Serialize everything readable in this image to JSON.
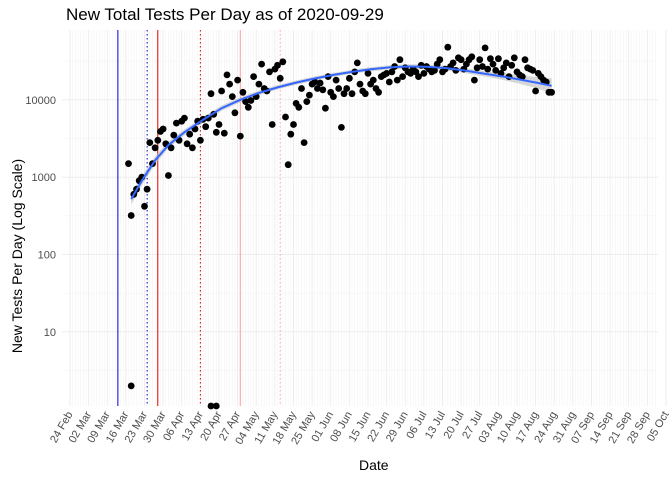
{
  "chart_data": {
    "type": "scatter",
    "title": "New Total Tests Per Day as of 2020-09-29",
    "xlabel": "Date",
    "ylabel": "New Tests Per Day (Log Scale)",
    "y_scale": "log10",
    "ylim": [
      1.1,
      80000
    ],
    "y_ticks": [
      10,
      100,
      1000,
      10000
    ],
    "y_tick_labels": [
      "10",
      "100",
      "1000",
      "10000"
    ],
    "x_start": "2020-02-24",
    "x_ticks": [
      "2020-02-24",
      "2020-03-02",
      "2020-03-09",
      "2020-03-16",
      "2020-03-23",
      "2020-03-30",
      "2020-04-06",
      "2020-04-13",
      "2020-04-20",
      "2020-04-27",
      "2020-05-04",
      "2020-05-11",
      "2020-05-18",
      "2020-05-25",
      "2020-06-01",
      "2020-06-08",
      "2020-06-15",
      "2020-06-22",
      "2020-06-29",
      "2020-07-06",
      "2020-07-13",
      "2020-07-20",
      "2020-07-27",
      "2020-08-03",
      "2020-08-10",
      "2020-08-17",
      "2020-08-24",
      "2020-08-31",
      "2020-09-07",
      "2020-09-14",
      "2020-09-21",
      "2020-09-28",
      "2020-10-05"
    ],
    "x_tick_labels": [
      "24 Feb",
      "02 Mar",
      "09 Mar",
      "16 Mar",
      "23 Mar",
      "30 Mar",
      "06 Apr",
      "13 Apr",
      "20 Apr",
      "27 Apr",
      "04 May",
      "11 May",
      "18 May",
      "25 May",
      "01 Jun",
      "08 Jun",
      "15 Jun",
      "22 Jun",
      "29 Jun",
      "06 Jul",
      "13 Jul",
      "20 Jul",
      "27 Jul",
      "03 Aug",
      "10 Aug",
      "17 Aug",
      "24 Aug",
      "31 Aug",
      "07 Sep",
      "14 Sep",
      "21 Sep",
      "28 Sep",
      "05 Oct"
    ],
    "grid": true,
    "vlines": [
      {
        "date": "2020-03-13",
        "color": "#0000cc",
        "style": "solid"
      },
      {
        "date": "2020-03-24",
        "color": "#0000cc",
        "style": "dotted"
      },
      {
        "date": "2020-03-28",
        "color": "#dd0000",
        "style": "solid"
      },
      {
        "date": "2020-04-13",
        "color": "#dd0000",
        "style": "dotted"
      },
      {
        "date": "2020-04-28",
        "color": "#ff9999",
        "style": "solid"
      },
      {
        "date": "2020-05-13",
        "color": "#ff9999",
        "style": "dotted"
      }
    ],
    "smooth": {
      "color": "#3366ff",
      "band_color": "#bdbdbd",
      "points": [
        {
          "day": 23,
          "y": 520,
          "lo": 440,
          "hi": 620
        },
        {
          "day": 27,
          "y": 900,
          "lo": 780,
          "hi": 1030
        },
        {
          "day": 32,
          "y": 1650,
          "lo": 1460,
          "hi": 1860
        },
        {
          "day": 37,
          "y": 2600,
          "lo": 2360,
          "hi": 2870
        },
        {
          "day": 43,
          "y": 3800,
          "lo": 3480,
          "hi": 4150
        },
        {
          "day": 50,
          "y": 5500,
          "lo": 5050,
          "hi": 6000
        },
        {
          "day": 57,
          "y": 7800,
          "lo": 7200,
          "hi": 8450
        },
        {
          "day": 64,
          "y": 10000,
          "lo": 9300,
          "hi": 10800
        },
        {
          "day": 71,
          "y": 12300,
          "lo": 11500,
          "hi": 13200
        },
        {
          "day": 78,
          "y": 14500,
          "lo": 13600,
          "hi": 15500
        },
        {
          "day": 85,
          "y": 16700,
          "lo": 15700,
          "hi": 17800
        },
        {
          "day": 92,
          "y": 18900,
          "lo": 17800,
          "hi": 20100
        },
        {
          "day": 99,
          "y": 21000,
          "lo": 19800,
          "hi": 22300
        },
        {
          "day": 106,
          "y": 23000,
          "lo": 21700,
          "hi": 24400
        },
        {
          "day": 113,
          "y": 24900,
          "lo": 23400,
          "hi": 26500
        },
        {
          "day": 120,
          "y": 26300,
          "lo": 24700,
          "hi": 28000
        },
        {
          "day": 127,
          "y": 27000,
          "lo": 25300,
          "hi": 28800
        },
        {
          "day": 134,
          "y": 26800,
          "lo": 25100,
          "hi": 28600
        },
        {
          "day": 141,
          "y": 25800,
          "lo": 24100,
          "hi": 27600
        },
        {
          "day": 148,
          "y": 24000,
          "lo": 22300,
          "hi": 25800
        },
        {
          "day": 155,
          "y": 22000,
          "lo": 20300,
          "hi": 23900
        },
        {
          "day": 162,
          "y": 20200,
          "lo": 18300,
          "hi": 22300
        },
        {
          "day": 169,
          "y": 18300,
          "lo": 16100,
          "hi": 20800
        },
        {
          "day": 176,
          "y": 16500,
          "lo": 13900,
          "hi": 19600
        },
        {
          "day": 181,
          "y": 15200,
          "lo": 12200,
          "hi": 18900
        }
      ]
    },
    "series": [
      {
        "name": "New Total Tests",
        "color": "#000000",
        "points": [
          {
            "day": 22,
            "y": 1500
          },
          {
            "day": 23,
            "y": 320
          },
          {
            "day": 24,
            "y": 600
          },
          {
            "day": 25,
            "y": 700
          },
          {
            "day": 26,
            "y": 900
          },
          {
            "day": 27,
            "y": 1000
          },
          {
            "day": 28,
            "y": 420
          },
          {
            "day": 29,
            "y": 700
          },
          {
            "day": 30,
            "y": 2800
          },
          {
            "day": 31,
            "y": 1500
          },
          {
            "day": 32,
            "y": 2400
          },
          {
            "day": 33,
            "y": 3000
          },
          {
            "day": 34,
            "y": 3900
          },
          {
            "day": 35,
            "y": 4200
          },
          {
            "day": 36,
            "y": 2700
          },
          {
            "day": 37,
            "y": 1050
          },
          {
            "day": 38,
            "y": 2400
          },
          {
            "day": 39,
            "y": 3500
          },
          {
            "day": 40,
            "y": 5000
          },
          {
            "day": 41,
            "y": 3000
          },
          {
            "day": 42,
            "y": 5300
          },
          {
            "day": 43,
            "y": 5800
          },
          {
            "day": 44,
            "y": 2700
          },
          {
            "day": 45,
            "y": 3600
          },
          {
            "day": 46,
            "y": 2400
          },
          {
            "day": 47,
            "y": 4200
          },
          {
            "day": 48,
            "y": 5300
          },
          {
            "day": 49,
            "y": 3000
          },
          {
            "day": 50,
            "y": 5600
          },
          {
            "day": 51,
            "y": 4500
          },
          {
            "day": 52,
            "y": 5800
          },
          {
            "day": 53,
            "y": 12000
          },
          {
            "day": 54,
            "y": 6500
          },
          {
            "day": 55,
            "y": 3800
          },
          {
            "day": 56,
            "y": 4800
          },
          {
            "day": 57,
            "y": 13000
          },
          {
            "day": 58,
            "y": 3700
          },
          {
            "day": 59,
            "y": 21000
          },
          {
            "day": 60,
            "y": 16000
          },
          {
            "day": 61,
            "y": 11000
          },
          {
            "day": 62,
            "y": 6800
          },
          {
            "day": 63,
            "y": 18000
          },
          {
            "day": 64,
            "y": 3400
          },
          {
            "day": 65,
            "y": 12500
          },
          {
            "day": 66,
            "y": 9500
          },
          {
            "day": 67,
            "y": 8000
          },
          {
            "day": 68,
            "y": 9800
          },
          {
            "day": 69,
            "y": 20000
          },
          {
            "day": 70,
            "y": 11000
          },
          {
            "day": 71,
            "y": 16000
          },
          {
            "day": 72,
            "y": 29000
          },
          {
            "day": 73,
            "y": 14000
          },
          {
            "day": 74,
            "y": 13000
          },
          {
            "day": 75,
            "y": 23000
          },
          {
            "day": 76,
            "y": 4800
          },
          {
            "day": 77,
            "y": 25000
          },
          {
            "day": 78,
            "y": 28000
          },
          {
            "day": 79,
            "y": 19000
          },
          {
            "day": 80,
            "y": 31000
          },
          {
            "day": 81,
            "y": 6000
          },
          {
            "day": 82,
            "y": 1450
          },
          {
            "day": 83,
            "y": 3600
          },
          {
            "day": 84,
            "y": 4800
          },
          {
            "day": 85,
            "y": 9000
          },
          {
            "day": 86,
            "y": 8000
          },
          {
            "day": 87,
            "y": 14000
          },
          {
            "day": 88,
            "y": 2800
          },
          {
            "day": 89,
            "y": 9500
          },
          {
            "day": 90,
            "y": 11500
          },
          {
            "day": 91,
            "y": 16000
          },
          {
            "day": 92,
            "y": 17000
          },
          {
            "day": 93,
            "y": 14000
          },
          {
            "day": 94,
            "y": 16500
          },
          {
            "day": 95,
            "y": 13500
          },
          {
            "day": 96,
            "y": 7800
          },
          {
            "day": 97,
            "y": 20000
          },
          {
            "day": 98,
            "y": 12500
          },
          {
            "day": 99,
            "y": 11000
          },
          {
            "day": 100,
            "y": 18000
          },
          {
            "day": 101,
            "y": 14000
          },
          {
            "day": 102,
            "y": 4400
          },
          {
            "day": 103,
            "y": 12000
          },
          {
            "day": 104,
            "y": 14000
          },
          {
            "day": 105,
            "y": 19000
          },
          {
            "day": 106,
            "y": 12000
          },
          {
            "day": 107,
            "y": 23000
          },
          {
            "day": 108,
            "y": 30000
          },
          {
            "day": 109,
            "y": 16000
          },
          {
            "day": 110,
            "y": 13000
          },
          {
            "day": 111,
            "y": 12000
          },
          {
            "day": 112,
            "y": 22000
          },
          {
            "day": 113,
            "y": 16000
          },
          {
            "day": 114,
            "y": 18000
          },
          {
            "day": 115,
            "y": 14000
          },
          {
            "day": 116,
            "y": 12500
          },
          {
            "day": 117,
            "y": 20000
          },
          {
            "day": 118,
            "y": 21000
          },
          {
            "day": 119,
            "y": 22000
          },
          {
            "day": 120,
            "y": 17000
          },
          {
            "day": 121,
            "y": 23000
          },
          {
            "day": 122,
            "y": 27000
          },
          {
            "day": 123,
            "y": 18000
          },
          {
            "day": 124,
            "y": 33000
          },
          {
            "day": 125,
            "y": 20000
          },
          {
            "day": 126,
            "y": 26000
          },
          {
            "day": 127,
            "y": 23000
          },
          {
            "day": 128,
            "y": 22000
          },
          {
            "day": 129,
            "y": 25000
          },
          {
            "day": 130,
            "y": 23000
          },
          {
            "day": 131,
            "y": 20000
          },
          {
            "day": 132,
            "y": 28000
          },
          {
            "day": 133,
            "y": 22000
          },
          {
            "day": 134,
            "y": 27000
          },
          {
            "day": 135,
            "y": 25000
          },
          {
            "day": 136,
            "y": 23000
          },
          {
            "day": 137,
            "y": 24000
          },
          {
            "day": 138,
            "y": 29000
          },
          {
            "day": 139,
            "y": 33000
          },
          {
            "day": 140,
            "y": 23000
          },
          {
            "day": 141,
            "y": 25000
          },
          {
            "day": 142,
            "y": 48000
          },
          {
            "day": 143,
            "y": 27000
          },
          {
            "day": 144,
            "y": 30000
          },
          {
            "day": 145,
            "y": 24000
          },
          {
            "day": 146,
            "y": 35000
          },
          {
            "day": 147,
            "y": 33000
          },
          {
            "day": 148,
            "y": 25000
          },
          {
            "day": 149,
            "y": 29000
          },
          {
            "day": 150,
            "y": 33000
          },
          {
            "day": 151,
            "y": 36000
          },
          {
            "day": 152,
            "y": 18000
          },
          {
            "day": 153,
            "y": 26000
          },
          {
            "day": 154,
            "y": 33000
          },
          {
            "day": 155,
            "y": 27000
          },
          {
            "day": 156,
            "y": 47000
          },
          {
            "day": 157,
            "y": 25000
          },
          {
            "day": 158,
            "y": 34000
          },
          {
            "day": 159,
            "y": 29000
          },
          {
            "day": 160,
            "y": 24000
          },
          {
            "day": 161,
            "y": 34000
          },
          {
            "day": 162,
            "y": 22000
          },
          {
            "day": 163,
            "y": 26000
          },
          {
            "day": 164,
            "y": 30000
          },
          {
            "day": 165,
            "y": 20000
          },
          {
            "day": 166,
            "y": 28000
          },
          {
            "day": 167,
            "y": 35000
          },
          {
            "day": 168,
            "y": 23000
          },
          {
            "day": 169,
            "y": 21000
          },
          {
            "day": 170,
            "y": 20000
          },
          {
            "day": 171,
            "y": 33000
          },
          {
            "day": 172,
            "y": 26000
          },
          {
            "day": 173,
            "y": 25000
          },
          {
            "day": 174,
            "y": 24000
          },
          {
            "day": 175,
            "y": 13000
          },
          {
            "day": 176,
            "y": 22000
          },
          {
            "day": 177,
            "y": 20000
          }
        ],
        "extra_points": [
          {
            "day": 178,
            "y": 18000
          },
          {
            "day": 179,
            "y": 17000
          },
          {
            "day": 180,
            "y": 12500
          },
          {
            "day": 181,
            "y": 12500
          }
        ]
      }
    ],
    "edge_points": [
      {
        "day": 23,
        "y": 2
      },
      {
        "day": 53,
        "y": 1.1
      },
      {
        "day": 55,
        "y": 1.1
      }
    ]
  }
}
